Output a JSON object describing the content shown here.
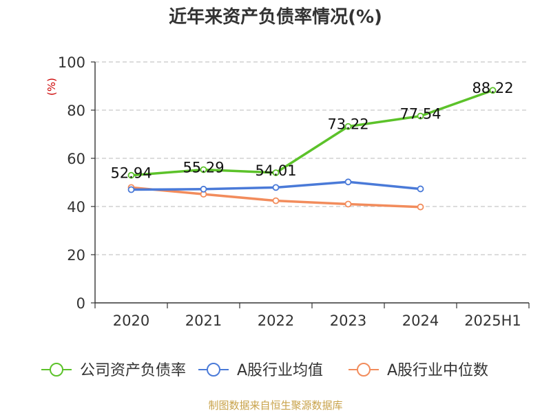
{
  "chart_data": {
    "type": "line",
    "title": "近年来资产负债率情况(%)",
    "ylabel": "(%)",
    "xlabel": "",
    "categories": [
      "2020",
      "2021",
      "2022",
      "2023",
      "2024",
      "2025H1"
    ],
    "y_ticks": [
      "0",
      "20",
      "40",
      "60",
      "80",
      "100"
    ],
    "ylim": [
      0,
      100
    ],
    "grid": true,
    "legend": "bottom",
    "series": [
      {
        "name": "公司资产负债率",
        "color": "#5cc22a",
        "values": [
          52.94,
          55.29,
          54.01,
          73.22,
          77.54,
          88.22
        ],
        "labels": [
          "52.94",
          "55.29",
          "54.01",
          "73.22",
          "77.54",
          "88.22"
        ]
      },
      {
        "name": "A股行业均值",
        "color": "#4a7ad8",
        "values": [
          47.0,
          47.2,
          47.9,
          50.2,
          47.3,
          null
        ]
      },
      {
        "name": "A股行业中位数",
        "color": "#f28c5c",
        "values": [
          47.9,
          45.1,
          42.4,
          41.0,
          39.8,
          null
        ]
      }
    ]
  },
  "footer": {
    "source": "制图数据来自恒生聚源数据库"
  }
}
